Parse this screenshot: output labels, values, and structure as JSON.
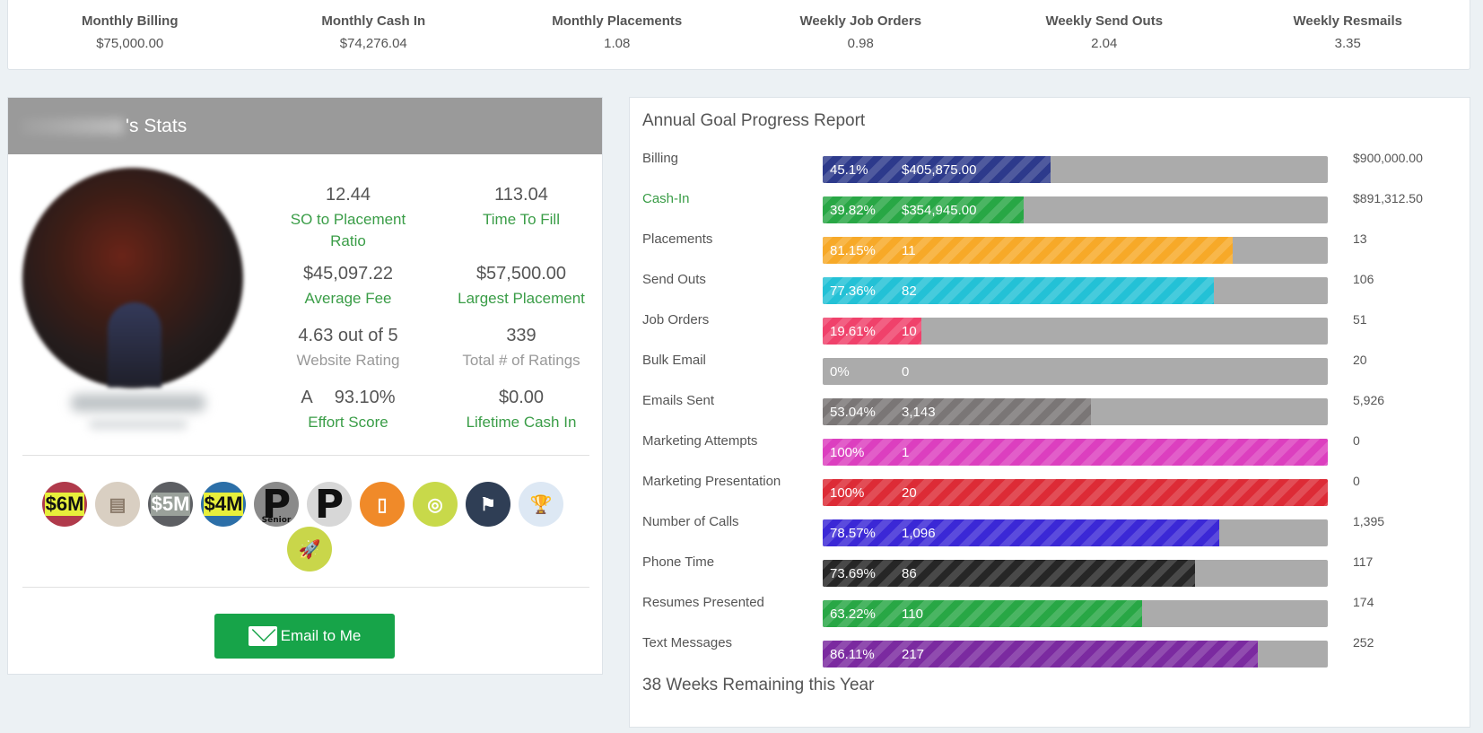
{
  "top_metrics": [
    {
      "label": "Monthly Billing",
      "value": "$75,000.00"
    },
    {
      "label": "Monthly Cash In",
      "value": "$74,276.04"
    },
    {
      "label": "Monthly Placements",
      "value": "1.08"
    },
    {
      "label": "Weekly Job Orders",
      "value": "0.98"
    },
    {
      "label": "Weekly Send Outs",
      "value": "2.04"
    },
    {
      "label": "Weekly Resmails",
      "value": "3.35"
    }
  ],
  "stats": {
    "header": "'s Stats",
    "so_ratio": {
      "value": "12.44",
      "caption": "SO to Placement Ratio"
    },
    "time_to_fill": {
      "value": "113.04",
      "caption": "Time To Fill"
    },
    "avg_fee": {
      "value": "$45,097.22",
      "caption": "Average Fee"
    },
    "largest": {
      "value": "$57,500.00",
      "caption": "Largest Placement"
    },
    "rating": {
      "value": "4.63 out of 5",
      "caption": "Website Rating"
    },
    "total_ratings": {
      "value": "339",
      "caption": "Total # of Ratings"
    },
    "effort": {
      "grade": "A",
      "value": "93.10%",
      "caption": "Effort Score"
    },
    "lifetime": {
      "value": "$0.00",
      "caption": "Lifetime Cash In"
    },
    "badges": [
      {
        "text": "$6M",
        "bg": "#b03a4b",
        "fg": "#111",
        "hl": "#e7ef3b"
      },
      {
        "text": "",
        "bg": "#d9cfc2",
        "fg": "#555",
        "hl": ""
      },
      {
        "text": "$5M",
        "bg": "#5d5f63",
        "fg": "#fff",
        "hl": "#9aa19b"
      },
      {
        "text": "$4M",
        "bg": "#2c6fa8",
        "fg": "#111",
        "hl": "#e7ef3b"
      },
      {
        "text": "P",
        "bg": "#8a8a8a",
        "fg": "#111",
        "hl": "",
        "sub": "Senior"
      },
      {
        "text": "P",
        "bg": "#d7d7d7",
        "fg": "#111",
        "hl": ""
      },
      {
        "text": "",
        "bg": "#f08a29",
        "fg": "#fff",
        "hl": ""
      },
      {
        "text": "",
        "bg": "#c8d94a",
        "fg": "#fff",
        "hl": ""
      },
      {
        "text": "",
        "bg": "#2f3e55",
        "fg": "#fff",
        "hl": ""
      },
      {
        "text": "",
        "bg": "#dde8f4",
        "fg": "#fff",
        "hl": ""
      },
      {
        "text": "",
        "bg": "#c9d64a",
        "fg": "#fff",
        "hl": ""
      }
    ],
    "email_label": "Email to Me"
  },
  "goals": {
    "title": "Annual Goal Progress Report",
    "rows": [
      {
        "label": "Billing",
        "pct": "45.1%",
        "frac": 0.451,
        "amount": "$405,875.00",
        "target": "$900,000.00",
        "color": "#2d3a8c",
        "green": false
      },
      {
        "label": "Cash-In",
        "pct": "39.82%",
        "frac": 0.3982,
        "amount": "$354,945.00",
        "target": "$891,312.50",
        "color": "#28a745",
        "green": true
      },
      {
        "label": "Placements",
        "pct": "81.15%",
        "frac": 0.8115,
        "amount": "11",
        "target": "13",
        "color": "#f7a928",
        "green": false
      },
      {
        "label": "Send Outs",
        "pct": "77.36%",
        "frac": 0.7736,
        "amount": "82",
        "target": "106",
        "color": "#23c1d6",
        "green": false
      },
      {
        "label": "Job Orders",
        "pct": "19.61%",
        "frac": 0.1961,
        "amount": "10",
        "target": "51",
        "color": "#f0416b",
        "green": false
      },
      {
        "label": "Bulk Email",
        "pct": "0%",
        "frac": 0,
        "amount": "0",
        "target": "20",
        "color": "#ababab",
        "green": false
      },
      {
        "label": "Emails Sent",
        "pct": "53.04%",
        "frac": 0.5304,
        "amount": "3,143",
        "target": "5,926",
        "color": "#7a7676",
        "green": false
      },
      {
        "label": "Marketing Attempts",
        "pct": "100%",
        "frac": 1,
        "amount": "1",
        "target": "0",
        "color": "#dc3fbf",
        "green": false
      },
      {
        "label": "Marketing Presentation",
        "pct": "100%",
        "frac": 1,
        "amount": "20",
        "target": "0",
        "color": "#dd2b36",
        "green": false
      },
      {
        "label": "Number of Calls",
        "pct": "78.57%",
        "frac": 0.7857,
        "amount": "1,096",
        "target": "1,395",
        "color": "#3b28d6",
        "green": false
      },
      {
        "label": "Phone Time",
        "pct": "73.69%",
        "frac": 0.7369,
        "amount": "86",
        "target": "117",
        "color": "#262626",
        "green": false
      },
      {
        "label": "Resumes Presented",
        "pct": "63.22%",
        "frac": 0.6322,
        "amount": "110",
        "target": "174",
        "color": "#28a745",
        "green": false
      },
      {
        "label": "Text Messages",
        "pct": "86.11%",
        "frac": 0.8611,
        "amount": "217",
        "target": "252",
        "color": "#7b2aa0",
        "green": false
      }
    ],
    "weeks_remaining": "38 Weeks Remaining this Year"
  }
}
